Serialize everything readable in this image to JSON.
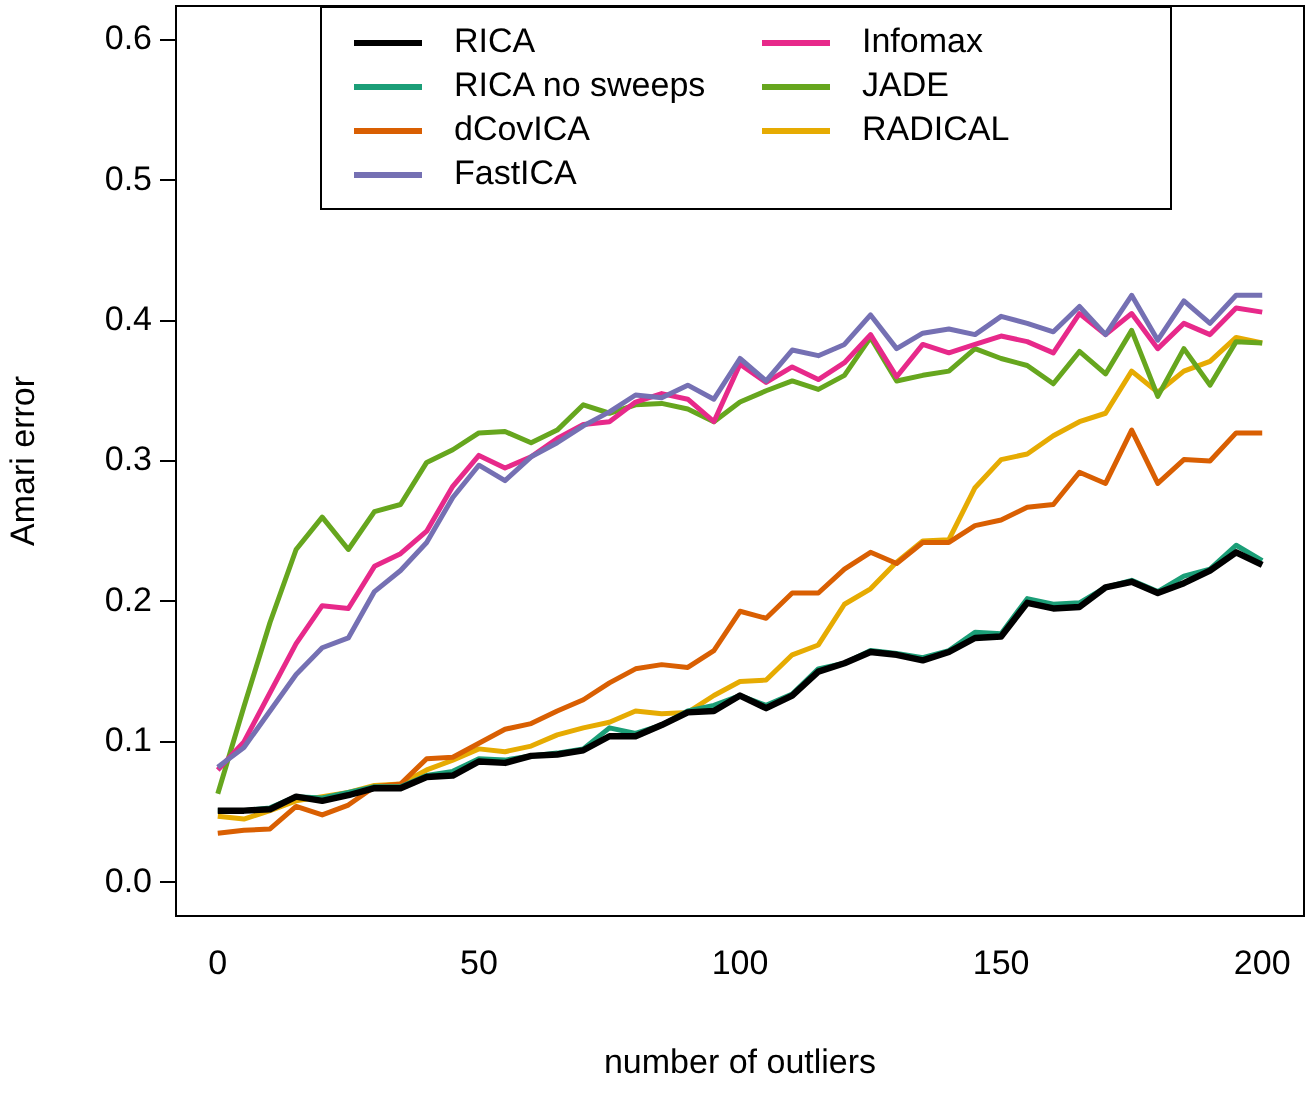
{
  "chart_data": {
    "type": "line",
    "xlabel": "number of outliers",
    "ylabel": "Amari error",
    "x": [
      0,
      5,
      10,
      15,
      20,
      25,
      30,
      35,
      40,
      45,
      50,
      55,
      60,
      65,
      70,
      75,
      80,
      85,
      90,
      95,
      100,
      105,
      110,
      115,
      120,
      125,
      130,
      135,
      140,
      145,
      150,
      155,
      160,
      165,
      170,
      175,
      180,
      185,
      190,
      195,
      200
    ],
    "xlim": [
      -8,
      208
    ],
    "xticks": [
      0,
      50,
      100,
      150,
      200
    ],
    "ylim": [
      -0.024,
      0.624
    ],
    "yticks": [
      {
        "value": 0,
        "label": "0.0"
      },
      {
        "value": 0.1,
        "label": "0.1"
      },
      {
        "value": 0.2,
        "label": "0.2"
      },
      {
        "value": 0.3,
        "label": "0.3"
      },
      {
        "value": 0.4,
        "label": "0.4"
      },
      {
        "value": 0.5,
        "label": "0.5"
      },
      {
        "value": 0.6,
        "label": "0.6"
      }
    ],
    "grid": false,
    "legend": "top",
    "marker": "none",
    "line_style": "solid",
    "series": [
      {
        "name": "RICA",
        "color": "#000000",
        "values": [
          0.051,
          0.051,
          0.052,
          0.061,
          0.058,
          0.062,
          0.067,
          0.067,
          0.075,
          0.076,
          0.086,
          0.085,
          0.09,
          0.091,
          0.094,
          0.104,
          0.104,
          0.112,
          0.121,
          0.122,
          0.133,
          0.124,
          0.133,
          0.15,
          0.156,
          0.164,
          0.162,
          0.158,
          0.164,
          0.174,
          0.175,
          0.199,
          0.195,
          0.196,
          0.21,
          0.214,
          0.206,
          0.213,
          0.222,
          0.235,
          0.226
        ]
      },
      {
        "name": "RICA no sweeps",
        "color": "#1b9e77",
        "values": [
          0.051,
          0.051,
          0.053,
          0.061,
          0.06,
          0.064,
          0.068,
          0.068,
          0.076,
          0.079,
          0.088,
          0.087,
          0.09,
          0.092,
          0.095,
          0.11,
          0.106,
          0.112,
          0.122,
          0.126,
          0.133,
          0.126,
          0.134,
          0.152,
          0.156,
          0.165,
          0.163,
          0.16,
          0.165,
          0.178,
          0.177,
          0.202,
          0.198,
          0.199,
          0.21,
          0.215,
          0.207,
          0.218,
          0.223,
          0.24,
          0.229
        ]
      },
      {
        "name": "dCovICA",
        "color": "#d95f02",
        "values": [
          0.035,
          0.037,
          0.038,
          0.054,
          0.048,
          0.055,
          0.068,
          0.07,
          0.088,
          0.089,
          0.099,
          0.109,
          0.113,
          0.122,
          0.13,
          0.142,
          0.152,
          0.155,
          0.153,
          0.165,
          0.193,
          0.188,
          0.206,
          0.206,
          0.223,
          0.235,
          0.227,
          0.242,
          0.242,
          0.254,
          0.258,
          0.267,
          0.269,
          0.292,
          0.284,
          0.322,
          0.284,
          0.301,
          0.3,
          0.32,
          0.32
        ]
      },
      {
        "name": "FastICA",
        "color": "#7570b3",
        "values": [
          0.082,
          0.096,
          0.122,
          0.148,
          0.167,
          0.174,
          0.207,
          0.222,
          0.242,
          0.274,
          0.297,
          0.286,
          0.303,
          0.313,
          0.325,
          0.335,
          0.347,
          0.345,
          0.354,
          0.344,
          0.373,
          0.357,
          0.379,
          0.375,
          0.383,
          0.404,
          0.38,
          0.391,
          0.394,
          0.39,
          0.403,
          0.398,
          0.392,
          0.41,
          0.39,
          0.418,
          0.386,
          0.414,
          0.398,
          0.418,
          0.418
        ]
      },
      {
        "name": "Infomax",
        "color": "#e7298a",
        "values": [
          0.08,
          0.1,
          0.135,
          0.17,
          0.197,
          0.195,
          0.225,
          0.234,
          0.25,
          0.282,
          0.304,
          0.295,
          0.303,
          0.316,
          0.326,
          0.328,
          0.342,
          0.348,
          0.344,
          0.328,
          0.369,
          0.356,
          0.367,
          0.358,
          0.37,
          0.39,
          0.36,
          0.383,
          0.377,
          0.383,
          0.389,
          0.385,
          0.377,
          0.405,
          0.39,
          0.405,
          0.38,
          0.398,
          0.39,
          0.409,
          0.406
        ]
      },
      {
        "name": "JADE",
        "color": "#66a61e",
        "values": [
          0.063,
          0.125,
          0.185,
          0.237,
          0.26,
          0.237,
          0.264,
          0.269,
          0.299,
          0.308,
          0.32,
          0.321,
          0.313,
          0.322,
          0.34,
          0.334,
          0.34,
          0.341,
          0.337,
          0.328,
          0.342,
          0.35,
          0.357,
          0.351,
          0.361,
          0.388,
          0.357,
          0.361,
          0.364,
          0.38,
          0.373,
          0.368,
          0.355,
          0.378,
          0.362,
          0.393,
          0.346,
          0.38,
          0.354,
          0.385,
          0.384
        ]
      },
      {
        "name": "RADICAL",
        "color": "#e6ab02",
        "values": [
          0.047,
          0.045,
          0.051,
          0.058,
          0.061,
          0.064,
          0.069,
          0.07,
          0.08,
          0.087,
          0.095,
          0.093,
          0.097,
          0.105,
          0.11,
          0.114,
          0.122,
          0.12,
          0.121,
          0.133,
          0.143,
          0.144,
          0.162,
          0.169,
          0.198,
          0.209,
          0.228,
          0.243,
          0.244,
          0.281,
          0.301,
          0.305,
          0.318,
          0.328,
          0.334,
          0.364,
          0.349,
          0.364,
          0.371,
          0.388,
          0.384
        ]
      }
    ]
  }
}
